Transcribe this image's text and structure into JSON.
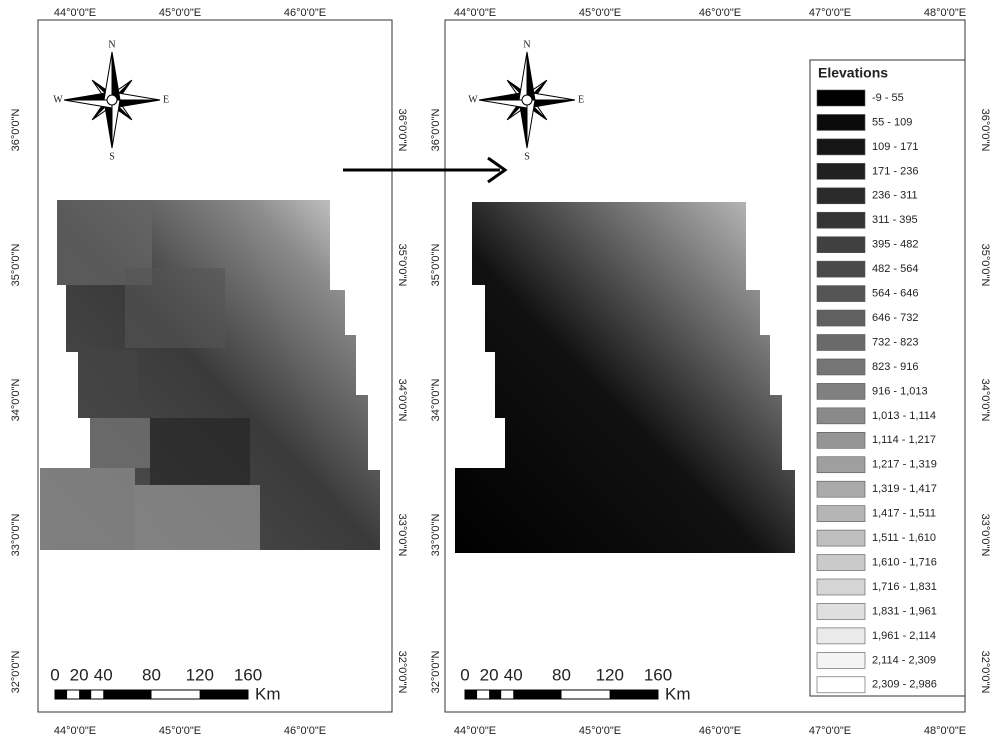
{
  "left_map": {
    "top_labels": [
      "44°0'0\"E",
      "45°0'0\"E",
      "46°0'0\"E"
    ],
    "bottom_labels": [
      "44°0'0\"E",
      "45°0'0\"E",
      "46°0'0\"E"
    ],
    "left_labels": [
      "36°0'0\"N",
      "35°0'0\"N",
      "34°0'0\"N",
      "33°0'0\"N",
      "32°0'0\"N"
    ],
    "right_labels": [
      "36°0'0\"N",
      "35°0'0\"N",
      "34°0'0\"N",
      "33°0'0\"N",
      "32°0'0\"N"
    ],
    "compass": {
      "n": "N",
      "e": "E",
      "s": "S",
      "w": "W"
    },
    "scale_bar": {
      "labels": [
        0,
        20,
        40,
        80,
        120,
        160
      ],
      "unit": "Km"
    }
  },
  "right_map": {
    "top_labels": [
      "44°0'0\"E",
      "45°0'0\"E",
      "46°0'0\"E",
      "47°0'0\"E",
      "48°0'0\"E"
    ],
    "bottom_labels": [
      "44°0'0\"E",
      "45°0'0\"E",
      "46°0'0\"E",
      "47°0'0\"E",
      "48°0'0\"E"
    ],
    "left_labels": [
      "36°0'0\"N",
      "35°0'0\"N",
      "34°0'0\"N",
      "33°0'0\"N",
      "32°0'0\"N"
    ],
    "right_labels": [
      "36°0'0\"N",
      "35°0'0\"N",
      "34°0'0\"N",
      "33°0'0\"N",
      "32°0'0\"N"
    ],
    "compass": {
      "n": "N",
      "e": "E",
      "s": "S",
      "w": "W"
    },
    "scale_bar": {
      "labels": [
        0,
        20,
        40,
        80,
        120,
        160
      ],
      "unit": "Km"
    },
    "legend": {
      "title": "Elevations",
      "items": [
        "-9 - 55",
        "55 - 109",
        "109 - 171",
        "171 - 236",
        "236 - 311",
        "311 - 395",
        "395 - 482",
        "482 - 564",
        "564 - 646",
        "646 - 732",
        "732 - 823",
        "823 - 916",
        "916 - 1,013",
        "1,013 - 1,114",
        "1,114 - 1,217",
        "1,217 - 1,319",
        "1,319 - 1,417",
        "1,417 - 1,511",
        "1,511 - 1,610",
        "1,610 - 1,716",
        "1,716 - 1,831",
        "1,831 - 1,961",
        "1,961 - 2,114",
        "2,114 - 2,309",
        "2,309 - 2,986"
      ]
    }
  }
}
